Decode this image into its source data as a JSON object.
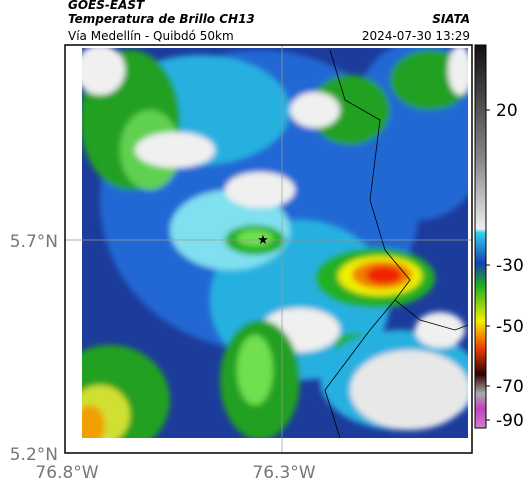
{
  "header": {
    "title": "GOES-EAST",
    "subtitle": "Temperatura de Brillo CH13",
    "source": "SIATA",
    "region": "Vía Medellín - Quibdó 50km",
    "datetime": "2024-07-30 13:29"
  },
  "axes": {
    "y_labels": [
      "5.7°N",
      "5.2°N"
    ],
    "x_labels": [
      "76.8°W",
      "76.3°W"
    ]
  },
  "colorbar": {
    "tick_labels": [
      "20",
      "-30",
      "-50",
      "-70",
      "-90"
    ]
  }
}
